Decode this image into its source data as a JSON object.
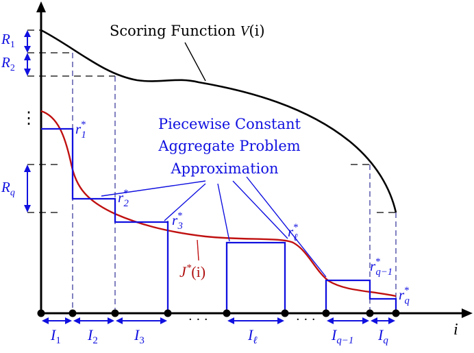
{
  "colors": {
    "axis": "#000000",
    "scoring": "#000000",
    "approx": "#1010e0",
    "jstar": "#c01010",
    "label_blue": "#1010e0",
    "label_red": "#b01010"
  },
  "scoring_label": "Scoring Function V(i)",
  "scoring_label_parts": {
    "text": "Scoring Function ",
    "fn": "V",
    "arg": "(i)"
  },
  "approx_label": {
    "line1": "Piecewise Constant",
    "line2": "Aggregate Problem",
    "line3": "Approximation"
  },
  "jstar_label": {
    "fn": "J",
    "sup": "*",
    "arg": "(i)"
  },
  "axis_label_i": "i",
  "left_labels": {
    "R1": {
      "main": "R",
      "sub": "1"
    },
    "R2": {
      "main": "R",
      "sub": "2"
    },
    "vdots": "⋮",
    "Rq": {
      "main": "R",
      "sub": "q"
    }
  },
  "r_labels": [
    {
      "main": "r",
      "sub": "1",
      "sup": "*"
    },
    {
      "main": "r",
      "sub": "2",
      "sup": "*"
    },
    {
      "main": "r",
      "sub": "3",
      "sup": "*"
    },
    {
      "main": "r",
      "sub": "ℓ",
      "sup": "*"
    },
    {
      "main": "r",
      "sub": "q−1",
      "sup": "*"
    },
    {
      "main": "r",
      "sub": "q",
      "sup": "*"
    }
  ],
  "interval_labels": [
    {
      "main": "I",
      "sub": "1"
    },
    {
      "main": "I",
      "sub": "2"
    },
    {
      "main": "I",
      "sub": "3"
    },
    {
      "main": "I",
      "sub": "ℓ"
    },
    {
      "main": "I",
      "sub": "q−1"
    },
    {
      "main": "I",
      "sub": "q"
    }
  ],
  "dots": "· · ·"
}
